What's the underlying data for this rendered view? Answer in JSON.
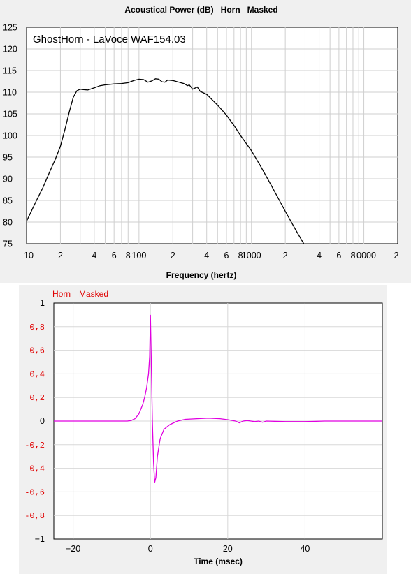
{
  "chart_data": [
    {
      "type": "line",
      "title": "Acoustical Power (dB)   Horn   Masked",
      "annotation": "GhostHorn - LaVoce WAF154.03",
      "xlabel": "Frequency (hertz)",
      "ylabel": "",
      "x_scale": "log",
      "xlim": [
        10,
        20000
      ],
      "ylim": [
        75,
        125
      ],
      "grid": true,
      "yticks": [
        "75",
        "80",
        "85",
        "90",
        "95",
        "100",
        "105",
        "110",
        "115",
        "120",
        "125"
      ],
      "xticks": [
        {
          "v": 10,
          "label": "10"
        },
        {
          "v": 20,
          "label": "2"
        },
        {
          "v": 40,
          "label": "4"
        },
        {
          "v": 60,
          "label": "6"
        },
        {
          "v": 80,
          "label": "8"
        },
        {
          "v": 100,
          "label": "100"
        },
        {
          "v": 200,
          "label": "2"
        },
        {
          "v": 400,
          "label": "4"
        },
        {
          "v": 600,
          "label": "6"
        },
        {
          "v": 800,
          "label": "8"
        },
        {
          "v": 1000,
          "label": "1000"
        },
        {
          "v": 2000,
          "label": "2"
        },
        {
          "v": 4000,
          "label": "4"
        },
        {
          "v": 6000,
          "label": "6"
        },
        {
          "v": 8000,
          "label": "8"
        },
        {
          "v": 10000,
          "label": "10000"
        },
        {
          "v": 20000,
          "label": "2"
        }
      ],
      "series": [
        {
          "color": "#000000",
          "x": [
            10,
            12,
            14,
            16,
            18,
            20,
            22,
            24,
            26,
            28,
            30,
            32,
            35,
            40,
            45,
            50,
            60,
            70,
            80,
            90,
            100,
            110,
            120,
            130,
            140,
            150,
            160,
            170,
            180,
            200,
            220,
            250,
            270,
            280,
            300,
            330,
            350,
            400,
            450,
            500,
            550,
            600,
            700,
            800,
            1000,
            1200,
            1500,
            2000,
            2500,
            3000,
            3200
          ],
          "y": [
            80.2,
            84.5,
            88,
            91.5,
            94.5,
            97.5,
            101.5,
            105.5,
            108.8,
            110.3,
            110.7,
            110.6,
            110.5,
            111,
            111.5,
            111.7,
            111.9,
            112,
            112.2,
            112.7,
            113,
            112.9,
            112.3,
            112.6,
            113.1,
            113,
            112.4,
            112.3,
            112.8,
            112.7,
            112.4,
            112,
            111.5,
            111.7,
            110.7,
            111.2,
            110.2,
            109.5,
            108.2,
            107,
            105.8,
            104.7,
            102.3,
            100,
            96.5,
            93,
            88.5,
            82.5,
            78,
            74.5,
            73
          ]
        }
      ]
    },
    {
      "type": "line",
      "title": "",
      "legend": [
        "Horn",
        "Masked"
      ],
      "xlabel": "Time (msec)",
      "ylabel": "",
      "xlim": [
        -25,
        60
      ],
      "ylim": [
        -1,
        1
      ],
      "grid": true,
      "xticks": [
        {
          "v": -20,
          "label": "−20"
        },
        {
          "v": 0,
          "label": "0"
        },
        {
          "v": 20,
          "label": "20"
        },
        {
          "v": 40,
          "label": "40"
        }
      ],
      "yticks": [
        {
          "v": 1,
          "label": "1",
          "red": false
        },
        {
          "v": 0.8,
          "label": "0,8",
          "red": true
        },
        {
          "v": 0.6,
          "label": "0,6",
          "red": true
        },
        {
          "v": 0.4,
          "label": "0,4",
          "red": true
        },
        {
          "v": 0.2,
          "label": "0,2",
          "red": true
        },
        {
          "v": 0,
          "label": "0",
          "red": false
        },
        {
          "v": -0.2,
          "label": "-0,2",
          "red": true
        },
        {
          "v": -0.4,
          "label": "-0,4",
          "red": true
        },
        {
          "v": -0.6,
          "label": "-0,6",
          "red": true
        },
        {
          "v": -0.8,
          "label": "-0,8",
          "red": true
        },
        {
          "v": -1,
          "label": "−1",
          "red": false
        }
      ],
      "series": [
        {
          "color": "#e000e0",
          "x": [
            -25,
            -6,
            -5,
            -4,
            -3,
            -2,
            -1.5,
            -1,
            -0.5,
            -0.2,
            0,
            0.2,
            0.5,
            0.8,
            1.1,
            1.4,
            1.8,
            2.5,
            3.5,
            5,
            7,
            9,
            12,
            15,
            18,
            20,
            22,
            23,
            24,
            25,
            26,
            27,
            28,
            29,
            30,
            35,
            40,
            45,
            50,
            55,
            60
          ],
          "y": [
            0,
            0,
            0.005,
            0.02,
            0.06,
            0.14,
            0.2,
            0.28,
            0.4,
            0.55,
            0.9,
            0.55,
            0.0,
            -0.35,
            -0.52,
            -0.48,
            -0.3,
            -0.15,
            -0.07,
            -0.03,
            0.0,
            0.015,
            0.02,
            0.025,
            0.02,
            0.012,
            0.0,
            -0.015,
            0.0,
            0.005,
            0.0,
            -0.005,
            0.0,
            -0.01,
            0.0,
            -0.005,
            -0.005,
            0.0,
            0.0,
            0.0,
            0.0
          ]
        }
      ]
    }
  ]
}
